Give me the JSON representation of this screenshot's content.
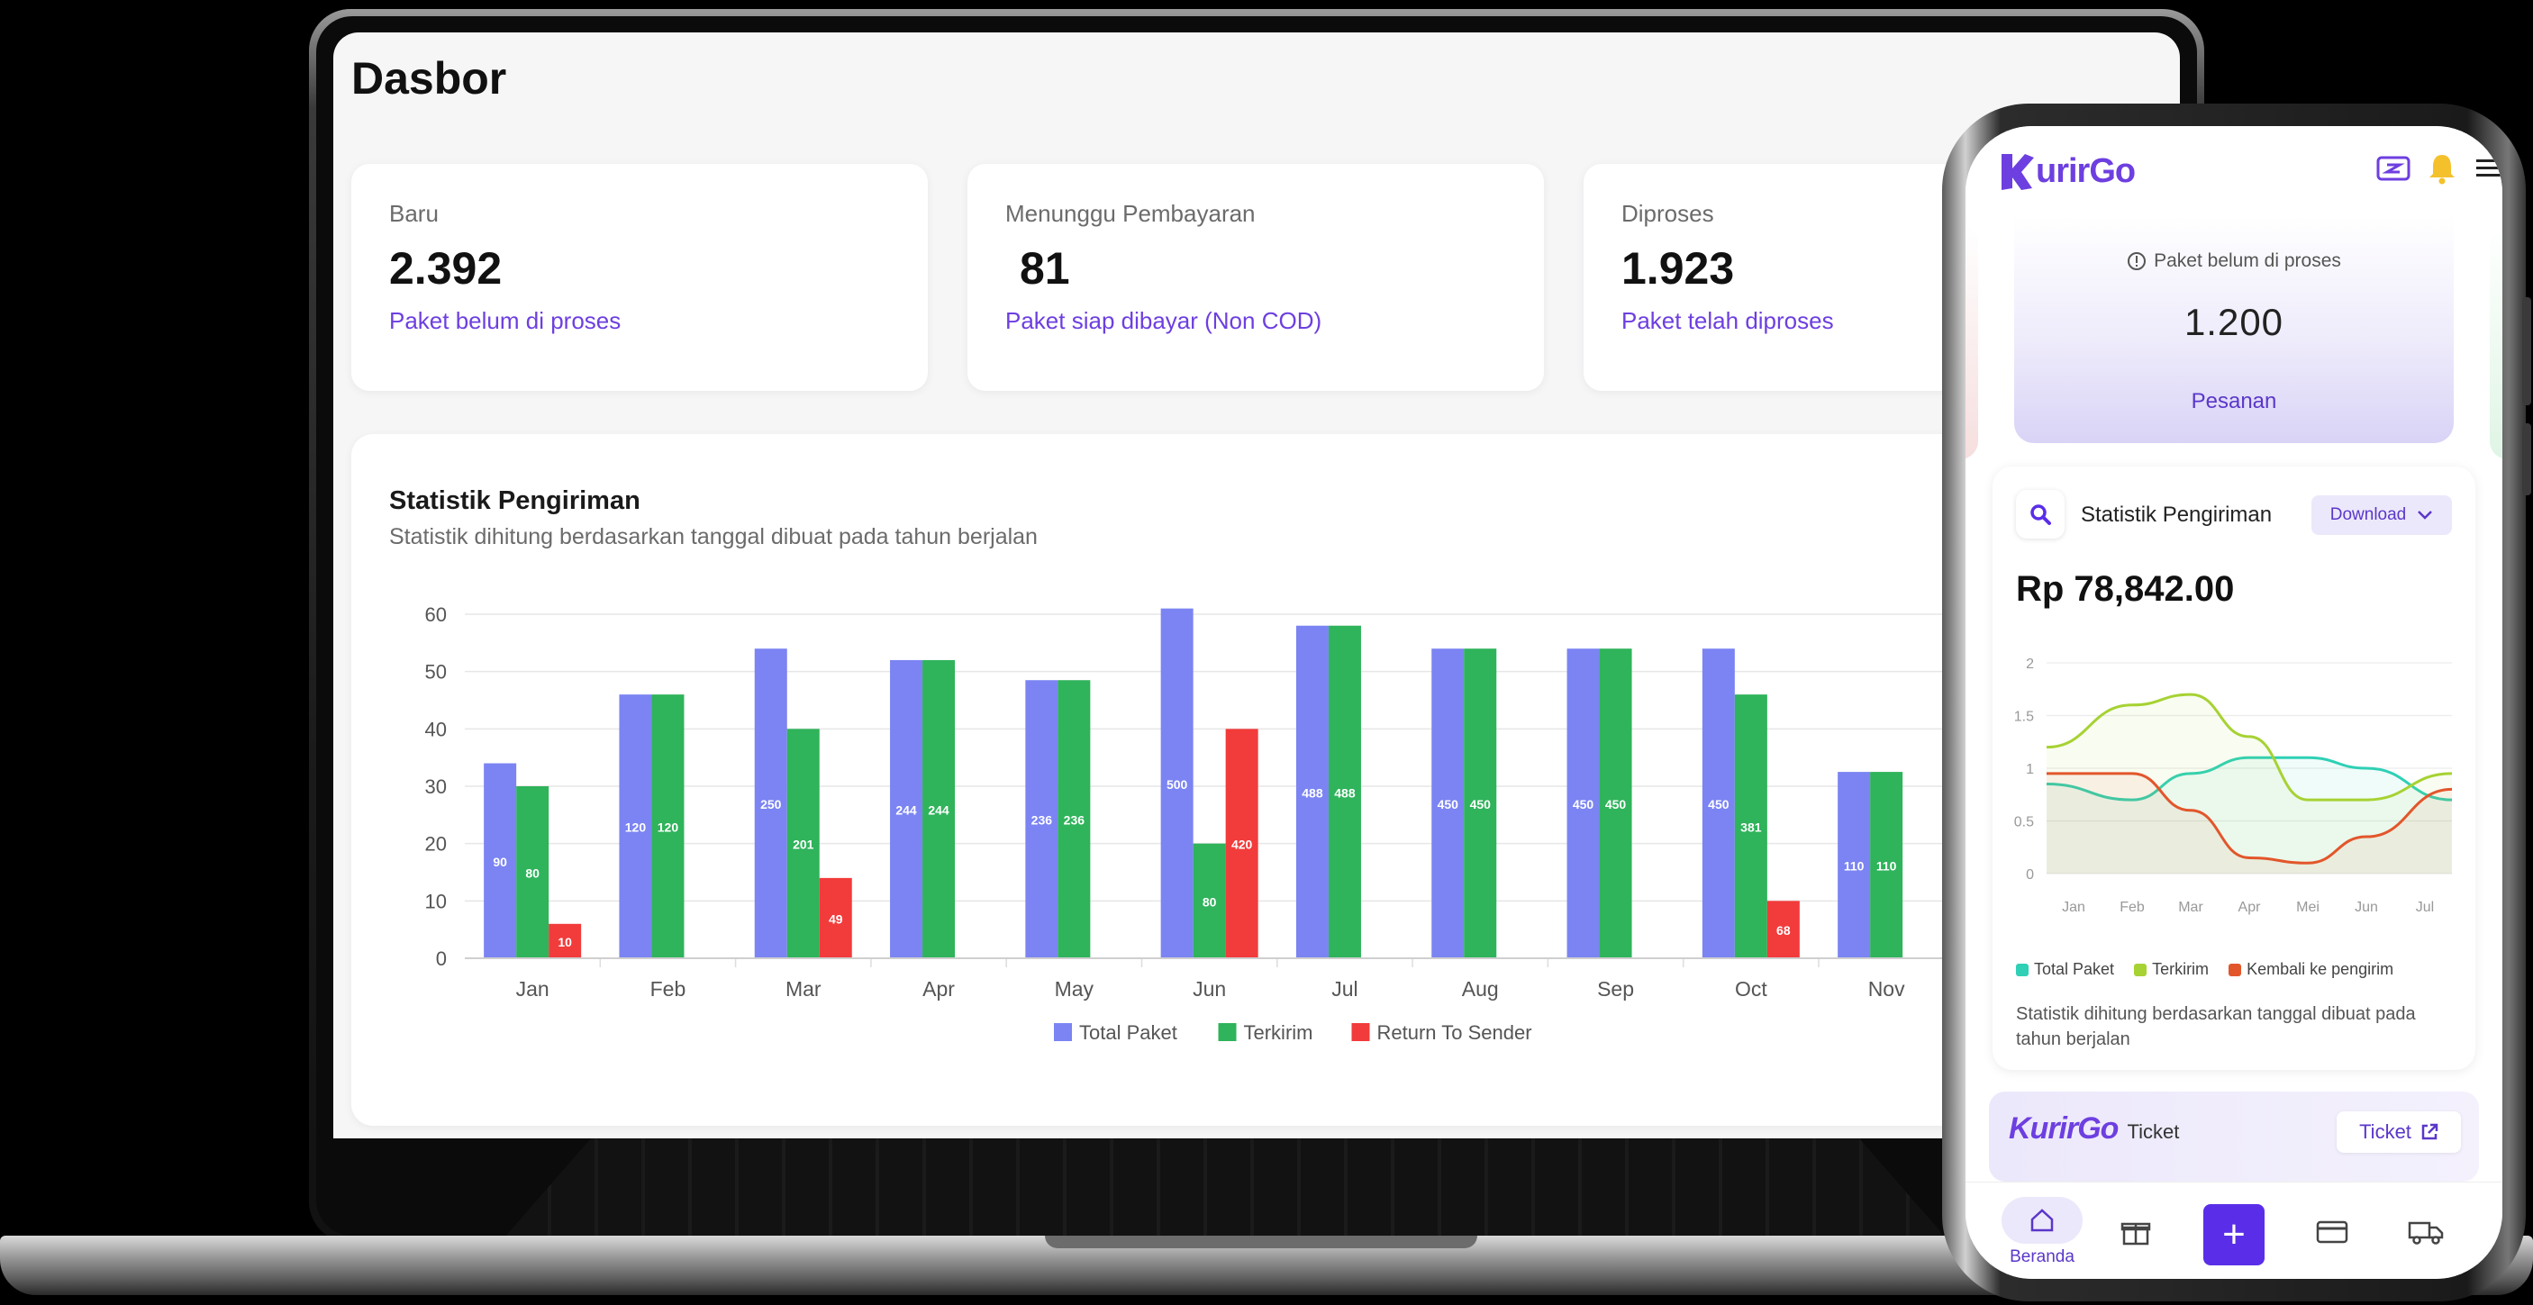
{
  "dashboard": {
    "title": "Dasbor",
    "cards": [
      {
        "label": "Baru",
        "value": "2.392",
        "sub": "Paket belum di proses"
      },
      {
        "label": "Menunggu Pembayaran",
        "value": "81",
        "sub": "Paket siap dibayar (Non COD)"
      },
      {
        "label": "Diproses",
        "value": "1.923",
        "sub": "Paket telah diproses"
      }
    ],
    "chart_title": "Statistik Pengiriman",
    "chart_subtitle": "Statistik dihitung berdasarkan tanggal dibuat pada tahun berjalan"
  },
  "chart_data": [
    {
      "type": "bar",
      "title": "Statistik Pengiriman",
      "categories": [
        "Jan",
        "Feb",
        "Mar",
        "Apr",
        "May",
        "Jun",
        "Jul",
        "Aug",
        "Sep",
        "Oct",
        "Nov"
      ],
      "ylim": [
        0,
        60
      ],
      "yticks": [
        "0",
        "10",
        "20",
        "30",
        "40",
        "50",
        "60"
      ],
      "grid": true,
      "legend": "bottom",
      "series": [
        {
          "name": "Total Paket",
          "color": "#7b84f2",
          "values": [
            34,
            46,
            54,
            52,
            48.5,
            61,
            58,
            54,
            54,
            54,
            32.5
          ],
          "labels": [
            "90",
            "120",
            "250",
            "244",
            "236",
            "500",
            "488",
            "450",
            "450",
            "450",
            "110"
          ]
        },
        {
          "name": "Terkirim",
          "color": "#2fb35b",
          "values": [
            30,
            46,
            40,
            52,
            48.5,
            20,
            58,
            54,
            54,
            46,
            32.5
          ],
          "labels": [
            "80",
            "120",
            "201",
            "244",
            "236",
            "80",
            "488",
            "450",
            "450",
            "381",
            "110"
          ]
        },
        {
          "name": "Return To Sender",
          "color": "#f23b3b",
          "values": [
            6,
            null,
            14,
            null,
            null,
            40,
            null,
            null,
            null,
            10,
            null
          ],
          "labels": [
            "10",
            "",
            "49",
            "",
            "",
            "420",
            "",
            "",
            "",
            "68",
            ""
          ]
        }
      ]
    },
    {
      "type": "line",
      "categories": [
        "Jan",
        "Feb",
        "Mar",
        "Apr",
        "Mei",
        "Jun",
        "Jul"
      ],
      "ylim": [
        0,
        2
      ],
      "yticks": [
        "0",
        "0.5",
        "1",
        "1.5",
        "2"
      ],
      "legend": "bottom",
      "series": [
        {
          "name": "Total Paket",
          "color": "#2fd0b5",
          "values": [
            0.85,
            0.7,
            0.95,
            1.1,
            1.1,
            1.0,
            0.7
          ]
        },
        {
          "name": "Terkirim",
          "color": "#a6d233",
          "values": [
            1.2,
            1.6,
            1.7,
            1.3,
            0.7,
            0.7,
            0.95
          ]
        },
        {
          "name": "Kembali ke pengirim",
          "color": "#e2562b",
          "values": [
            0.95,
            0.95,
            0.6,
            0.15,
            0.1,
            0.35,
            0.8
          ]
        }
      ]
    }
  ],
  "phone": {
    "logo": "KurirGo",
    "logo_suffix": "urirGo",
    "package_label": "Paket belum di proses",
    "package_value": "1.200",
    "package_link": "Pesanan",
    "stat_title": "Statistik Pengiriman",
    "download_label": "Download",
    "amount": "Rp 78,842.00",
    "legend": [
      "Total Paket",
      "Terkirim",
      "Kembali ke pengirim"
    ],
    "note": "Statistik dihitung berdasarkan tanggal dibuat pada tahun berjalan",
    "ticket_word": "Ticket",
    "ticket_button": "Ticket",
    "nav_home": "Beranda",
    "nav_plus": "+"
  }
}
